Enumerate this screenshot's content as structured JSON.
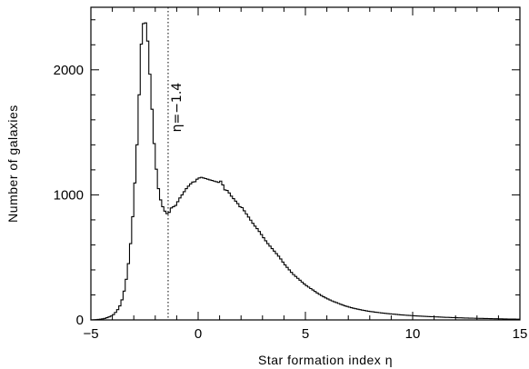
{
  "chart_data": {
    "type": "histogram",
    "xlabel": "Star formation index η",
    "ylabel": "Number of galaxies",
    "xlim": [
      -5,
      15
    ],
    "ylim": [
      0,
      2500
    ],
    "x_ticks": [
      -5,
      0,
      5,
      10,
      15
    ],
    "x_tick_labels": [
      "−5",
      "0",
      "5",
      "10",
      "15"
    ],
    "y_ticks": [
      0,
      1000,
      2000
    ],
    "y_tick_labels": [
      "0",
      "1000",
      "2000"
    ],
    "grid": false,
    "legend": "none",
    "bin_width": 0.1,
    "points": [
      [
        -5.0,
        0
      ],
      [
        -4.8,
        2
      ],
      [
        -4.6,
        5
      ],
      [
        -4.4,
        10
      ],
      [
        -4.2,
        20
      ],
      [
        -4.0,
        35
      ],
      [
        -3.9,
        50
      ],
      [
        -3.8,
        70
      ],
      [
        -3.7,
        95
      ],
      [
        -3.6,
        130
      ],
      [
        -3.5,
        190
      ],
      [
        -3.4,
        270
      ],
      [
        -3.3,
        380
      ],
      [
        -3.2,
        520
      ],
      [
        -3.1,
        700
      ],
      [
        -3.0,
        950
      ],
      [
        -2.9,
        1240
      ],
      [
        -2.8,
        1560
      ],
      [
        -2.7,
        2040
      ],
      [
        -2.6,
        2370
      ],
      [
        -2.5,
        2370
      ],
      [
        -2.4,
        2380
      ],
      [
        -2.3,
        2080
      ],
      [
        -2.2,
        1850
      ],
      [
        -2.1,
        1520
      ],
      [
        -2.0,
        1300
      ],
      [
        -1.9,
        1110
      ],
      [
        -1.8,
        990
      ],
      [
        -1.7,
        930
      ],
      [
        -1.6,
        880
      ],
      [
        -1.5,
        860
      ],
      [
        -1.4,
        840
      ],
      [
        -1.3,
        880
      ],
      [
        -1.2,
        910
      ],
      [
        -1.1,
        900
      ],
      [
        -1.0,
        930
      ],
      [
        -0.9,
        960
      ],
      [
        -0.8,
        990
      ],
      [
        -0.7,
        1010
      ],
      [
        -0.6,
        1040
      ],
      [
        -0.5,
        1060
      ],
      [
        -0.4,
        1080
      ],
      [
        -0.3,
        1095
      ],
      [
        -0.2,
        1110
      ],
      [
        -0.1,
        1100
      ],
      [
        0.0,
        1150
      ],
      [
        0.1,
        1120
      ],
      [
        0.2,
        1160
      ],
      [
        0.3,
        1110
      ],
      [
        0.4,
        1150
      ],
      [
        0.5,
        1100
      ],
      [
        0.6,
        1140
      ],
      [
        0.7,
        1090
      ],
      [
        0.8,
        1130
      ],
      [
        0.9,
        1080
      ],
      [
        1.0,
        1120
      ],
      [
        1.1,
        1100
      ],
      [
        1.2,
        1060
      ],
      [
        1.3,
        1020
      ],
      [
        1.4,
        1050
      ],
      [
        1.5,
        980
      ],
      [
        1.6,
        1000
      ],
      [
        1.7,
        940
      ],
      [
        1.8,
        960
      ],
      [
        1.9,
        900
      ],
      [
        2.0,
        910
      ],
      [
        2.2,
        860
      ],
      [
        2.4,
        810
      ],
      [
        2.6,
        760
      ],
      [
        2.8,
        720
      ],
      [
        3.0,
        670
      ],
      [
        3.2,
        620
      ],
      [
        3.4,
        580
      ],
      [
        3.6,
        540
      ],
      [
        3.8,
        500
      ],
      [
        4.0,
        450
      ],
      [
        4.2,
        410
      ],
      [
        4.4,
        370
      ],
      [
        4.6,
        340
      ],
      [
        4.8,
        310
      ],
      [
        5.0,
        280
      ],
      [
        5.3,
        245
      ],
      [
        5.6,
        210
      ],
      [
        5.9,
        180
      ],
      [
        6.2,
        155
      ],
      [
        6.5,
        135
      ],
      [
        6.8,
        115
      ],
      [
        7.2,
        95
      ],
      [
        7.6,
        80
      ],
      [
        8.0,
        68
      ],
      [
        8.5,
        57
      ],
      [
        9.0,
        48
      ],
      [
        9.5,
        40
      ],
      [
        10.0,
        34
      ],
      [
        10.5,
        29
      ],
      [
        11.0,
        25
      ],
      [
        11.5,
        21
      ],
      [
        12.0,
        18
      ],
      [
        12.5,
        15
      ],
      [
        13.0,
        13
      ],
      [
        13.5,
        11
      ],
      [
        14.0,
        9
      ],
      [
        14.5,
        7
      ],
      [
        15.0,
        6
      ]
    ],
    "vline": {
      "x": -1.4,
      "style": "dotted"
    },
    "annotation": {
      "x": -1.4,
      "y": 1700,
      "text": "η=−1.4"
    }
  }
}
